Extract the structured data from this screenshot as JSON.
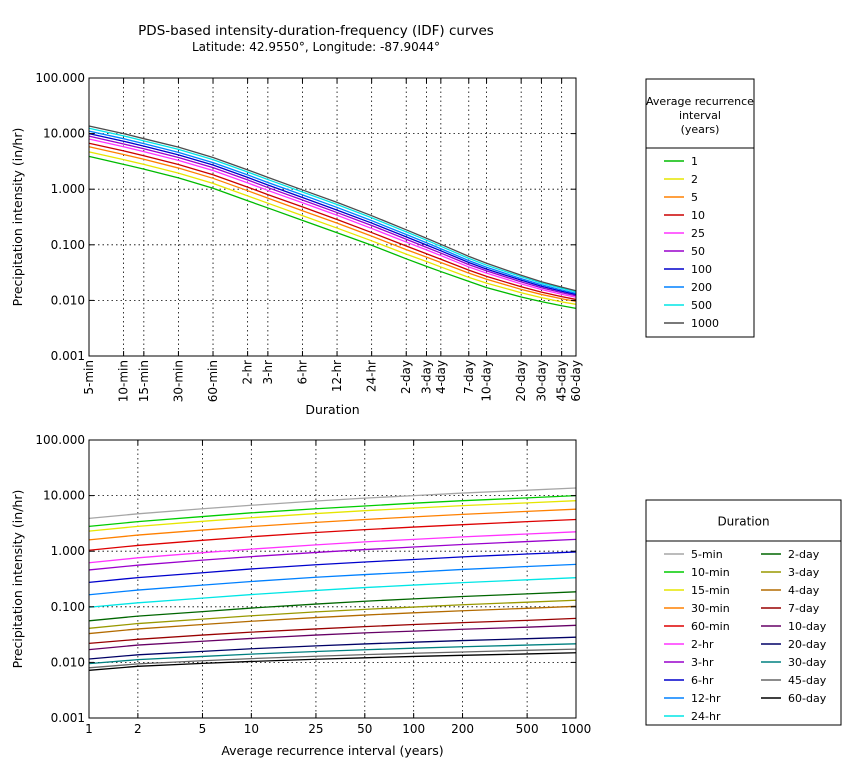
{
  "header": {
    "title": "PDS-based intensity-duration-frequency (IDF) curves",
    "subtitle": "Latitude: 42.9550°, Longitude: -87.9044°"
  },
  "chart_data": [
    {
      "type": "line",
      "xlabel": "Duration",
      "ylabel": "Precipitation intensity (in/hr)",
      "x_scale": "log",
      "y_scale": "log",
      "ylim": [
        0.001,
        100
      ],
      "y_ticks": [
        "100.000",
        "10.000",
        "1.000",
        "0.100",
        "0.010",
        "0.001"
      ],
      "grid": "dotted",
      "x": [
        "5-min",
        "10-min",
        "15-min",
        "30-min",
        "60-min",
        "2-hr",
        "3-hr",
        "6-hr",
        "12-hr",
        "24-hr",
        "2-day",
        "3-day",
        "4-day",
        "7-day",
        "10-day",
        "20-day",
        "30-day",
        "45-day",
        "60-day"
      ],
      "legend": {
        "title": "Average recurrence interval\n(years)",
        "placement": "right"
      },
      "series": [
        {
          "name": "1",
          "color": "#00bb00",
          "values": [
            3.9,
            2.8,
            2.3,
            1.6,
            1.04,
            0.62,
            0.46,
            0.275,
            0.165,
            0.098,
            0.056,
            0.041,
            0.033,
            0.022,
            0.017,
            0.0115,
            0.0095,
            0.008,
            0.0072
          ]
        },
        {
          "name": "2",
          "color": "#e6e600",
          "values": [
            4.7,
            3.4,
            2.8,
            1.95,
            1.27,
            0.76,
            0.56,
            0.335,
            0.2,
            0.118,
            0.068,
            0.05,
            0.04,
            0.026,
            0.0205,
            0.0137,
            0.0112,
            0.0094,
            0.0085
          ]
        },
        {
          "name": "5",
          "color": "#ff8000",
          "values": [
            5.8,
            4.2,
            3.45,
            2.4,
            1.57,
            0.94,
            0.69,
            0.41,
            0.245,
            0.143,
            0.082,
            0.06,
            0.048,
            0.031,
            0.024,
            0.0158,
            0.0128,
            0.0107,
            0.0096
          ]
        },
        {
          "name": "10",
          "color": "#cc0000",
          "values": [
            6.7,
            4.9,
            4.0,
            2.78,
            1.82,
            1.09,
            0.8,
            0.48,
            0.285,
            0.166,
            0.095,
            0.069,
            0.055,
            0.035,
            0.027,
            0.0176,
            0.0141,
            0.0117,
            0.0104
          ]
        },
        {
          "name": "25",
          "color": "#ff33ff",
          "values": [
            8.0,
            5.8,
            4.75,
            3.3,
            2.17,
            1.3,
            0.95,
            0.57,
            0.34,
            0.197,
            0.112,
            0.081,
            0.064,
            0.04,
            0.031,
            0.0198,
            0.0157,
            0.0129,
            0.0114
          ]
        },
        {
          "name": "50",
          "color": "#9900cc",
          "values": [
            9.0,
            6.5,
            5.35,
            3.72,
            2.44,
            1.47,
            1.07,
            0.64,
            0.38,
            0.222,
            0.126,
            0.09,
            0.071,
            0.044,
            0.034,
            0.0215,
            0.0169,
            0.0138,
            0.0121
          ]
        },
        {
          "name": "100",
          "color": "#0000cc",
          "values": [
            10.0,
            7.3,
            5.95,
            4.15,
            2.72,
            1.63,
            1.19,
            0.71,
            0.42,
            0.246,
            0.139,
            0.099,
            0.078,
            0.048,
            0.0365,
            0.0231,
            0.018,
            0.0146,
            0.0128
          ]
        },
        {
          "name": "200",
          "color": "#0080ff",
          "values": [
            11.1,
            8.1,
            6.6,
            4.6,
            3.0,
            1.81,
            1.32,
            0.79,
            0.47,
            0.272,
            0.153,
            0.109,
            0.085,
            0.052,
            0.0395,
            0.0247,
            0.0191,
            0.0154,
            0.0134
          ]
        },
        {
          "name": "500",
          "color": "#00e6e6",
          "values": [
            12.5,
            9.1,
            7.4,
            5.2,
            3.4,
            2.04,
            1.49,
            0.89,
            0.53,
            0.306,
            0.171,
            0.121,
            0.094,
            0.057,
            0.043,
            0.0267,
            0.0205,
            0.0165,
            0.0142
          ]
        },
        {
          "name": "1000",
          "color": "#4d4d4d",
          "values": [
            13.7,
            10.0,
            8.1,
            5.7,
            3.72,
            2.23,
            1.63,
            0.97,
            0.58,
            0.334,
            0.186,
            0.131,
            0.102,
            0.062,
            0.0465,
            0.0284,
            0.0216,
            0.0173,
            0.0149
          ]
        }
      ]
    },
    {
      "type": "line",
      "xlabel": "Average recurrence interval (years)",
      "ylabel": "Precipitation intensity (in/hr)",
      "x_scale": "log",
      "y_scale": "log",
      "ylim": [
        0.001,
        100
      ],
      "y_ticks": [
        "100.000",
        "10.000",
        "1.000",
        "0.100",
        "0.010",
        "0.001"
      ],
      "grid": "dotted",
      "x": [
        1,
        2,
        5,
        10,
        25,
        50,
        100,
        200,
        500,
        1000
      ],
      "x_ticks": [
        "1",
        "2",
        "5",
        "10",
        "25",
        "50",
        "100",
        "200",
        "500",
        "1000"
      ],
      "legend": {
        "title": "Duration",
        "placement": "right"
      },
      "series": [
        {
          "name": "5-min",
          "color": "#a6a6a6",
          "values": [
            3.9,
            4.7,
            5.8,
            6.7,
            8.0,
            9.0,
            10.0,
            11.1,
            12.5,
            13.7
          ]
        },
        {
          "name": "10-min",
          "color": "#00cc00",
          "values": [
            2.8,
            3.4,
            4.2,
            4.9,
            5.8,
            6.5,
            7.3,
            8.1,
            9.1,
            10.0
          ]
        },
        {
          "name": "15-min",
          "color": "#e6e600",
          "values": [
            2.3,
            2.8,
            3.45,
            4.0,
            4.75,
            5.35,
            5.95,
            6.6,
            7.4,
            8.1
          ]
        },
        {
          "name": "30-min",
          "color": "#ff8000",
          "values": [
            1.6,
            1.95,
            2.4,
            2.78,
            3.3,
            3.72,
            4.15,
            4.6,
            5.2,
            5.7
          ]
        },
        {
          "name": "60-min",
          "color": "#dd0000",
          "values": [
            1.04,
            1.27,
            1.57,
            1.82,
            2.17,
            2.44,
            2.72,
            3.0,
            3.4,
            3.72
          ]
        },
        {
          "name": "2-hr",
          "color": "#ff33ff",
          "values": [
            0.62,
            0.76,
            0.94,
            1.09,
            1.3,
            1.47,
            1.63,
            1.81,
            2.04,
            2.23
          ]
        },
        {
          "name": "3-hr",
          "color": "#9900cc",
          "values": [
            0.46,
            0.56,
            0.69,
            0.8,
            0.95,
            1.07,
            1.19,
            1.32,
            1.49,
            1.63
          ]
        },
        {
          "name": "6-hr",
          "color": "#0000cc",
          "values": [
            0.275,
            0.335,
            0.41,
            0.48,
            0.57,
            0.64,
            0.71,
            0.79,
            0.89,
            0.97
          ]
        },
        {
          "name": "12-hr",
          "color": "#0080ff",
          "values": [
            0.165,
            0.2,
            0.245,
            0.285,
            0.34,
            0.38,
            0.42,
            0.47,
            0.53,
            0.58
          ]
        },
        {
          "name": "24-hr",
          "color": "#00e6e6",
          "values": [
            0.098,
            0.118,
            0.143,
            0.166,
            0.197,
            0.222,
            0.246,
            0.272,
            0.306,
            0.334
          ]
        },
        {
          "name": "2-day",
          "color": "#006600",
          "values": [
            0.056,
            0.068,
            0.082,
            0.095,
            0.112,
            0.126,
            0.139,
            0.153,
            0.171,
            0.186
          ]
        },
        {
          "name": "3-day",
          "color": "#999900",
          "values": [
            0.041,
            0.05,
            0.06,
            0.069,
            0.081,
            0.09,
            0.099,
            0.109,
            0.121,
            0.131
          ]
        },
        {
          "name": "4-day",
          "color": "#b36b00",
          "values": [
            0.033,
            0.04,
            0.048,
            0.055,
            0.064,
            0.071,
            0.078,
            0.085,
            0.094,
            0.102
          ]
        },
        {
          "name": "7-day",
          "color": "#990000",
          "values": [
            0.022,
            0.026,
            0.031,
            0.035,
            0.04,
            0.044,
            0.048,
            0.052,
            0.057,
            0.062
          ]
        },
        {
          "name": "10-day",
          "color": "#660066",
          "values": [
            0.017,
            0.0205,
            0.024,
            0.027,
            0.031,
            0.034,
            0.0365,
            0.0395,
            0.043,
            0.0465
          ]
        },
        {
          "name": "20-day",
          "color": "#000066",
          "values": [
            0.0115,
            0.0137,
            0.0158,
            0.0176,
            0.0198,
            0.0215,
            0.0231,
            0.0247,
            0.0267,
            0.0284
          ]
        },
        {
          "name": "30-day",
          "color": "#008080",
          "values": [
            0.0095,
            0.0112,
            0.0128,
            0.0141,
            0.0157,
            0.0169,
            0.018,
            0.0191,
            0.0205,
            0.0216
          ]
        },
        {
          "name": "45-day",
          "color": "#666666",
          "values": [
            0.008,
            0.0094,
            0.0107,
            0.0117,
            0.0129,
            0.0138,
            0.0146,
            0.0154,
            0.0165,
            0.0173
          ]
        },
        {
          "name": "60-day",
          "color": "#000000",
          "values": [
            0.0072,
            0.0085,
            0.0096,
            0.0104,
            0.0114,
            0.0121,
            0.0128,
            0.0134,
            0.0142,
            0.0149
          ]
        }
      ]
    }
  ]
}
